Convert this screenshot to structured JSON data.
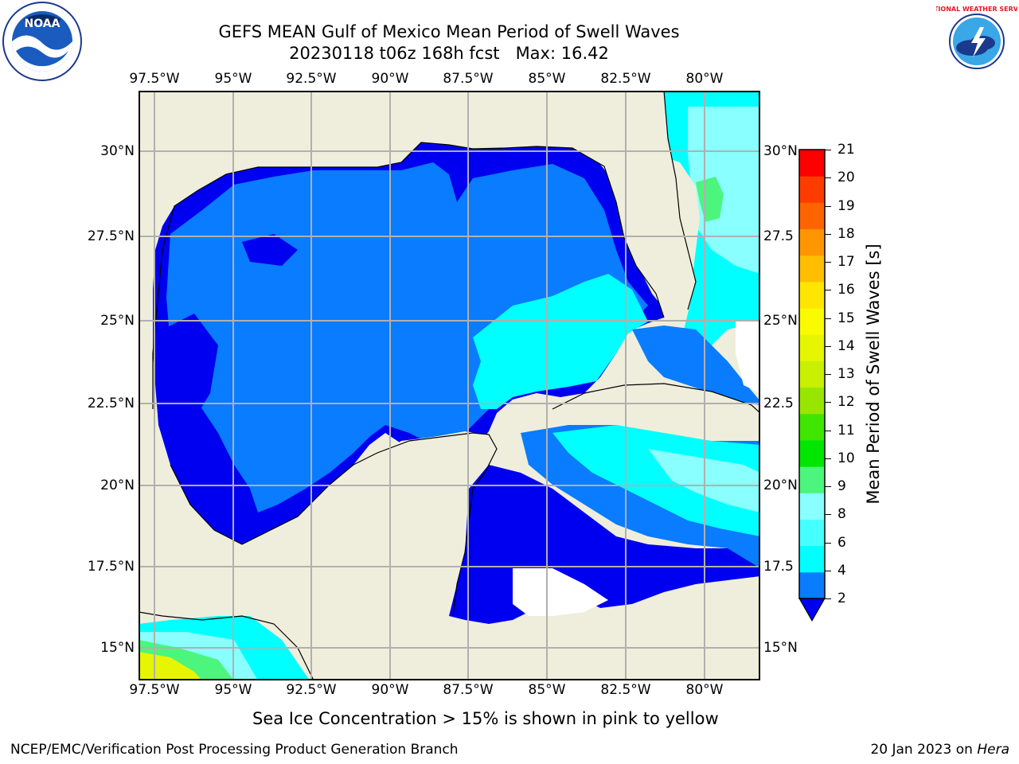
{
  "header": {
    "title_line1": "GEFS MEAN Gulf of Mexico Mean Period of Swell Waves",
    "title_line2": "20230118 t06z 168h fcst",
    "max_label": "Max: 16.42"
  },
  "logos": {
    "left_text": "NOAA",
    "right_text": "NATIONAL WEATHER SERVICE"
  },
  "map": {
    "lon_ticks": [
      "97.5°W",
      "95°W",
      "92.5°W",
      "90°W",
      "87.5°W",
      "85°W",
      "82.5°W",
      "80°W"
    ],
    "lat_ticks_left": [
      "30°N",
      "27.5°N",
      "25°N",
      "22.5°N",
      "20°N",
      "17.5°N",
      "15°N"
    ],
    "lat_ticks_right": [
      "30°N",
      "27.5",
      "25°N",
      "22.5",
      "20°N",
      "17.5",
      "15°N"
    ],
    "colors": {
      "land": "#efeedc",
      "ocean_dark": "#0000f0",
      "ocean_mid": "#0a7cff",
      "ocean_cyan": "#00ffff",
      "ocean_lightcyan": "#8affff",
      "grid": "#b0b0b0"
    }
  },
  "colorbar": {
    "label": "Mean Period of Swell Waves [s]",
    "ticks": [
      "21",
      "20",
      "19",
      "18",
      "17",
      "16",
      "15",
      "14",
      "13",
      "12",
      "11",
      "10",
      "9",
      "8",
      "6",
      "4",
      "2"
    ],
    "bands": [
      "#0a7cff",
      "#00ffff",
      "#46ffff",
      "#8affff",
      "#4cf57c",
      "#00e600",
      "#40e600",
      "#98e600",
      "#c8f000",
      "#e6f500",
      "#fafa00",
      "#ffe600",
      "#ffbe00",
      "#ff9600",
      "#ff6400",
      "#ff3c00",
      "#ff0000"
    ]
  },
  "footer": {
    "ice_note": "Sea Ice Concentration > 15% is shown in pink to yellow",
    "branch": "NCEP/EMC/Verification Post Processing Product Generation Branch",
    "date": "20 Jan 2023 on ",
    "machine": "Hera"
  }
}
